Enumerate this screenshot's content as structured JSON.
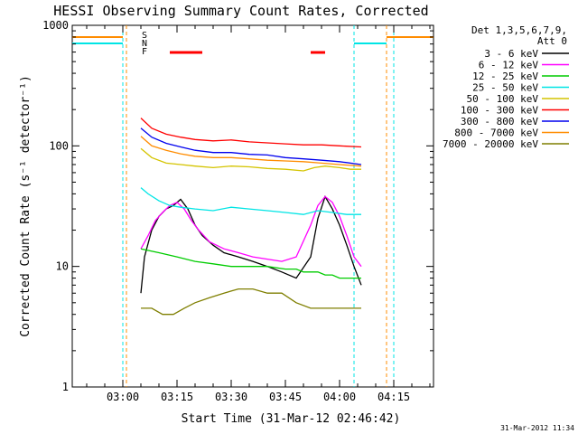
{
  "chart_data": {
    "type": "line",
    "title": "HESSI Observing Summary Count Rates, Corrected",
    "xlabel": "Start Time (31-Mar-12 02:46:42)",
    "ylabel": "Corrected Count Rate (s⁻¹ detector⁻¹)",
    "yscale": "log",
    "ylim": [
      1,
      1000
    ],
    "xlim_minutes_utc": [
      "02:46",
      "04:26"
    ],
    "ytick_labels": [
      "1",
      "10",
      "100",
      "1000"
    ],
    "xtick_labels": [
      "03:00",
      "03:15",
      "03:30",
      "03:45",
      "04:00",
      "04:15"
    ],
    "xtick_minutes": [
      180,
      195,
      210,
      225,
      240,
      255
    ],
    "legend_header": [
      "Det 1,3,5,6,7,9,",
      "Att 0"
    ],
    "legend_placement": "right",
    "series": [
      {
        "name": "3 - 6 keV",
        "color": "#000000",
        "x": [
          185,
          186,
          188,
          190,
          192,
          194,
          196,
          198,
          200,
          202,
          205,
          208,
          212,
          216,
          220,
          224,
          228,
          232,
          234,
          236,
          238,
          240,
          242,
          244,
          246
        ],
        "y": [
          6,
          12,
          20,
          26,
          30,
          32,
          36,
          30,
          22,
          18,
          15,
          13,
          12,
          11,
          10,
          9,
          8,
          12,
          25,
          38,
          30,
          22,
          15,
          10,
          7
        ]
      },
      {
        "name": "6 - 12 keV",
        "color": "#ff00ff",
        "x": [
          185,
          187,
          189,
          191,
          193,
          195,
          197,
          199,
          201,
          204,
          208,
          212,
          216,
          220,
          224,
          228,
          232,
          234,
          236,
          238,
          240,
          242,
          244,
          246
        ],
        "y": [
          14,
          18,
          24,
          28,
          32,
          34,
          30,
          24,
          20,
          16,
          14,
          13,
          12,
          11.5,
          11,
          12,
          22,
          32,
          38,
          34,
          26,
          18,
          12,
          10
        ]
      },
      {
        "name": "12 - 25 keV",
        "color": "#00cc00",
        "x": [
          185,
          190,
          195,
          200,
          205,
          210,
          215,
          220,
          225,
          228,
          230,
          232,
          234,
          236,
          238,
          240,
          242,
          244,
          246
        ],
        "y": [
          14,
          13,
          12,
          11,
          10.5,
          10,
          10,
          10,
          9.5,
          9.5,
          9,
          9,
          9,
          8.5,
          8.5,
          8,
          8,
          8,
          8
        ]
      },
      {
        "name": "25 - 50 keV",
        "color": "#00e5e5",
        "x": [
          185,
          187,
          190,
          193,
          196,
          200,
          205,
          210,
          215,
          220,
          225,
          230,
          234,
          238,
          242,
          246
        ],
        "y": [
          45,
          40,
          35,
          32,
          31,
          30,
          29,
          31,
          30,
          29,
          28,
          27,
          29,
          28,
          27,
          27
        ]
      },
      {
        "name": "50 - 100 keV",
        "color": "#d4c400",
        "x": [
          185,
          188,
          192,
          196,
          200,
          205,
          210,
          215,
          220,
          225,
          230,
          233,
          236,
          240,
          243,
          246
        ],
        "y": [
          95,
          80,
          72,
          70,
          68,
          66,
          68,
          67,
          65,
          64,
          62,
          66,
          68,
          66,
          64,
          64
        ]
      },
      {
        "name": "100 - 300 keV",
        "color": "#ff0000",
        "x": [
          185,
          188,
          192,
          196,
          200,
          205,
          210,
          215,
          220,
          225,
          230,
          235,
          240,
          246
        ],
        "y": [
          170,
          140,
          125,
          118,
          113,
          110,
          112,
          108,
          106,
          104,
          102,
          102,
          100,
          98
        ]
      },
      {
        "name": "300 - 800 keV",
        "color": "#0000ee",
        "x": [
          185,
          188,
          192,
          196,
          200,
          205,
          210,
          215,
          220,
          225,
          230,
          235,
          240,
          246
        ],
        "y": [
          140,
          118,
          105,
          98,
          92,
          88,
          88,
          85,
          84,
          80,
          78,
          76,
          74,
          70
        ]
      },
      {
        "name": "800 - 7000 keV",
        "color": "#ff8c00",
        "x": [
          185,
          188,
          192,
          196,
          200,
          205,
          210,
          215,
          220,
          225,
          230,
          235,
          240,
          246
        ],
        "y": [
          120,
          100,
          92,
          86,
          82,
          80,
          80,
          78,
          76,
          75,
          74,
          72,
          70,
          68
        ]
      },
      {
        "name": "7000 - 20000 keV",
        "color": "#7f7f00",
        "x": [
          185,
          188,
          191,
          194,
          197,
          200,
          204,
          208,
          212,
          216,
          220,
          224,
          228,
          232,
          236,
          240,
          243,
          246
        ],
        "y": [
          4.5,
          4.5,
          4,
          4,
          4.5,
          5,
          5.5,
          6,
          6.5,
          6.5,
          6,
          6,
          5,
          4.5,
          4.5,
          4.5,
          4.5,
          4.5
        ]
      }
    ],
    "flag_markers": [
      {
        "label": "S",
        "color": "#ff8c00"
      },
      {
        "label": "N",
        "color": "#00e5e5"
      },
      {
        "label": "F",
        "color": "#ff0000"
      }
    ],
    "flare_bars_minutes": [
      [
        193,
        202
      ],
      [
        232,
        236
      ]
    ],
    "saa_night_lines_minutes": [
      {
        "x": 180,
        "color": "#00e5e5"
      },
      {
        "x": 181,
        "color": "#ff8c00"
      },
      {
        "x": 244,
        "color": "#00e5e5"
      },
      {
        "x": 253,
        "color": "#ff8c00"
      },
      {
        "x": 255,
        "color": "#00e5e5"
      }
    ],
    "grid": false
  },
  "footer": {
    "timestamp": "31-Mar-2012 11:34"
  }
}
